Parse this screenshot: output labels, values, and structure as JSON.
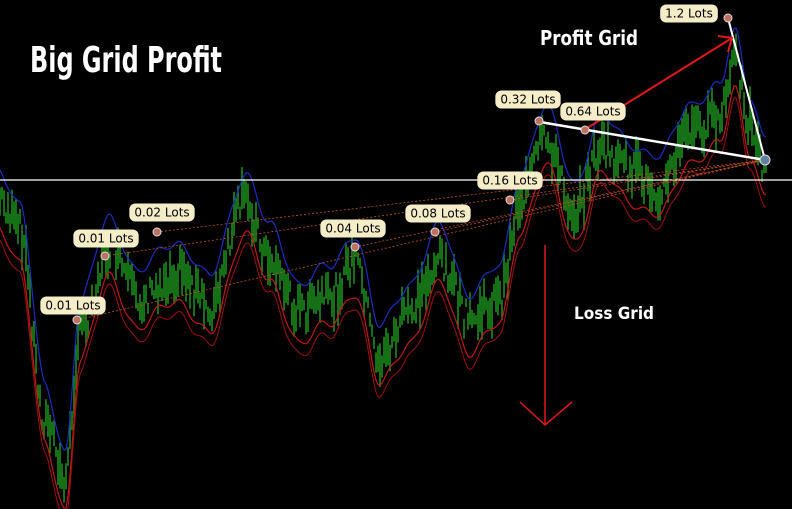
{
  "header": {
    "title": "Big Grid Profit"
  },
  "annotations": {
    "profit_grid": "Profit Grid",
    "loss_grid": "Loss Grid"
  },
  "lots": [
    "0.01 Lots",
    "0.01 Lots",
    "0.02 Lots",
    "0.04 Lots",
    "0.08 Lots",
    "0.16 Lots",
    "0.32 Lots",
    "0.64 Lots",
    "1.2 Lots"
  ]
}
